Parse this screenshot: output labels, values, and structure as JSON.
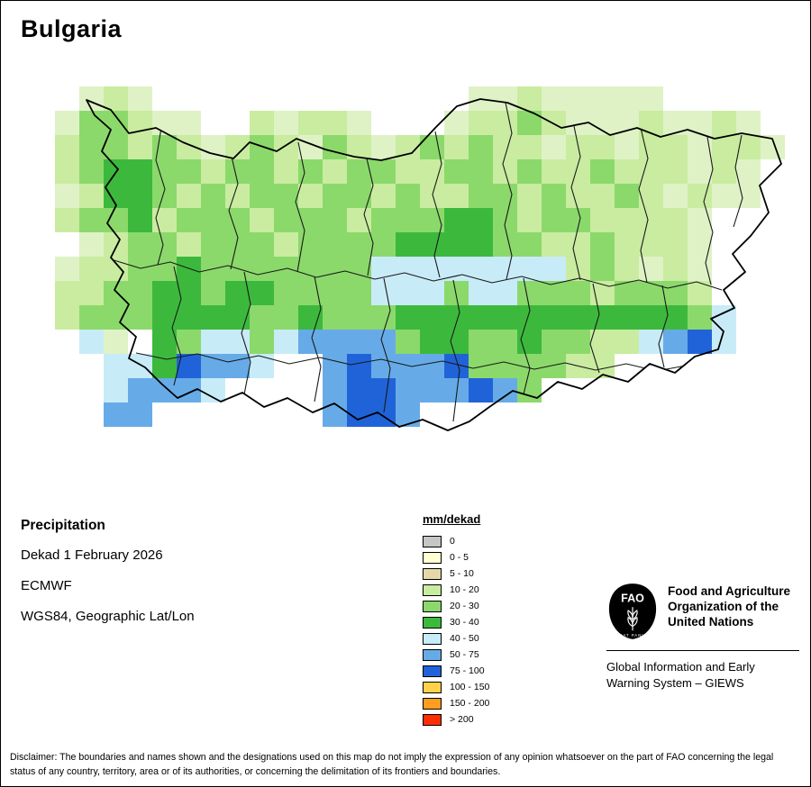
{
  "page": {
    "title": "Bulgaria"
  },
  "map": {
    "cell_size": 27,
    "palette": {
      "p": "#dff2c6",
      "l": "#c9eca0",
      "m": "#8bd96b",
      "g": "#3cb93c",
      "c": "#c8ebf8",
      "s": "#66abe8",
      "b": "#2063d8"
    },
    "rows": [
      ".plp.............pplppppp.....",
      "pmmlpp..lpllp...pllmlppplpplp.",
      "lmmlmlplmlpmlplmlmllpllpllpllp",
      "lmggmmlmmlmlmmllmmlmllmlllplp.",
      "plggmlmlmmlmmlmllmmlmllmlplpp.",
      "lmmglmmmlmmmlmmmggmlmmllllp...",
      ".plmmlmmmlmmmmggggmmllmlllp...",
      "pllmmgmmmmmmmcccccccclmlplp...",
      "llmmggmggmmmmcccmccmmmlmmml...",
      "lmmmggggmmgmmmggggggggggggmc..",
      ".cp.gmccmcssssmggmmgmmllcsbc..",
      "..ccgbssc..sbsssbmmmmll.......",
      "..csssc....sbbsssbsm..........",
      "..ss.......sbbs..............."
    ]
  },
  "info": {
    "variable": "Precipitation",
    "dekad": "Dekad 1 February 2026",
    "source": "ECMWF",
    "projection": "WGS84, Geographic Lat/Lon"
  },
  "legend": {
    "title": "mm/dekad",
    "entries": [
      {
        "label": "0",
        "color": "#c6c6c6"
      },
      {
        "label": "0 - 5",
        "color": "#ffffd2"
      },
      {
        "label": "5 - 10",
        "color": "#e6d7ab"
      },
      {
        "label": "10 - 20",
        "color": "#c9eca0"
      },
      {
        "label": "20 - 30",
        "color": "#8bd96b"
      },
      {
        "label": "30 - 40",
        "color": "#3cb93c"
      },
      {
        "label": "40 - 50",
        "color": "#c8ebf8"
      },
      {
        "label": "50 - 75",
        "color": "#66abe8"
      },
      {
        "label": "75 - 100",
        "color": "#2063d8"
      },
      {
        "label": "100 - 150",
        "color": "#ffd24a"
      },
      {
        "label": "150 - 200",
        "color": "#ff9d1e"
      },
      {
        "label": "> 200",
        "color": "#ff2e00"
      }
    ]
  },
  "footer": {
    "fao_logo_text": "FAO",
    "fao_motto": "FIAT PANIS",
    "org_lines": [
      "Food and Agriculture",
      "Organization of the",
      "United Nations"
    ],
    "giews_lines": [
      "Global Information and Early",
      "Warning System – GIEWS"
    ],
    "disclaimer": "Disclaimer: The boundaries and names shown and the designations used on this map do not imply the expression of any opinion whatsoever on the part of FAO concerning the legal status of any country, territory, area or of its authorities, or concerning the delimitation of its frontiers and boundaries."
  }
}
